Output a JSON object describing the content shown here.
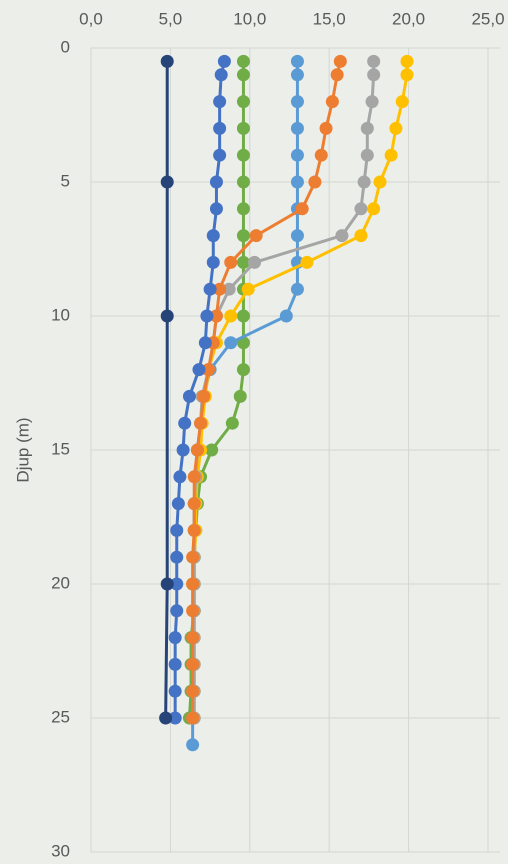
{
  "chart_data": {
    "type": "line",
    "y_label": "Djup (m)",
    "xlim": [
      0,
      25
    ],
    "ylim": [
      0,
      30
    ],
    "y_inverted": true,
    "x_axis_position": "top",
    "grid": true,
    "xticks": [
      {
        "value": 0,
        "label": "0,0"
      },
      {
        "value": 5,
        "label": "5,0"
      },
      {
        "value": 10,
        "label": "10,0"
      },
      {
        "value": 15,
        "label": "15,0"
      },
      {
        "value": 20,
        "label": "20,0"
      },
      {
        "value": 25,
        "label": "25,0"
      }
    ],
    "yticks": [
      0,
      5,
      10,
      15,
      20,
      25,
      30
    ],
    "series": [
      {
        "color": "#70ad47",
        "x": [
          9.6,
          9.6,
          9.6,
          9.6,
          9.6,
          9.6,
          9.6,
          9.6,
          9.6,
          9.6,
          9.6,
          9.6,
          9.6,
          9.4,
          8.9,
          7.6,
          6.9,
          6.7,
          6.6,
          6.5,
          6.4,
          6.5,
          6.3,
          6.3,
          6.3,
          6.2
        ],
        "values": [
          0.5,
          1,
          2,
          3,
          4,
          5,
          6,
          7,
          8,
          9,
          10,
          11,
          12,
          13,
          14,
          15,
          16,
          17,
          18,
          19,
          20,
          21,
          22,
          23,
          24,
          25
        ]
      },
      {
        "color": "#5b9bd5",
        "x": [
          13.0,
          13.0,
          13.0,
          13.0,
          13.0,
          13.0,
          13.0,
          13.0,
          13.0,
          13.0,
          12.3,
          8.8,
          7.5,
          7.1,
          6.9,
          6.7,
          6.6,
          6.5,
          6.5,
          6.5,
          6.5,
          6.5,
          6.4,
          6.4,
          6.4,
          6.4,
          6.4
        ],
        "values": [
          0.5,
          1,
          2,
          3,
          4,
          5,
          6,
          7,
          8,
          9,
          10,
          11,
          12,
          13,
          14,
          15,
          16,
          17,
          18,
          19,
          20,
          21,
          22,
          23,
          24,
          25,
          26
        ]
      },
      {
        "color": "#ffc000",
        "x": [
          19.9,
          19.9,
          19.6,
          19.2,
          18.9,
          18.2,
          17.8,
          17.0,
          13.6,
          9.9,
          8.8,
          7.9,
          7.4,
          7.2,
          7.0,
          6.9,
          6.7,
          6.6,
          6.6,
          6.5,
          6.5,
          6.5,
          6.5,
          6.5,
          6.5,
          6.5
        ],
        "values": [
          0.5,
          1,
          2,
          3,
          4,
          5,
          6,
          7,
          8,
          9,
          10,
          11,
          12,
          13,
          14,
          15,
          16,
          17,
          18,
          19,
          20,
          21,
          22,
          23,
          24,
          25
        ]
      },
      {
        "color": "#a5a5a5",
        "x": [
          17.8,
          17.8,
          17.7,
          17.4,
          17.4,
          17.2,
          17.0,
          15.8,
          10.3,
          8.7,
          7.9,
          7.7,
          7.4,
          7.0,
          6.9,
          6.7,
          6.6,
          6.5,
          6.5,
          6.5,
          6.5,
          6.5,
          6.5,
          6.5,
          6.5,
          6.5
        ],
        "values": [
          0.5,
          1,
          2,
          3,
          4,
          5,
          6,
          7,
          8,
          9,
          10,
          11,
          12,
          13,
          14,
          15,
          16,
          17,
          18,
          19,
          20,
          21,
          22,
          23,
          24,
          25
        ]
      },
      {
        "color": "#ed7d31",
        "x": [
          15.7,
          15.5,
          15.2,
          14.8,
          14.5,
          14.1,
          13.3,
          10.4,
          8.8,
          8.1,
          7.9,
          7.7,
          7.4,
          7.1,
          6.9,
          6.7,
          6.5,
          6.5,
          6.5,
          6.4,
          6.4,
          6.4,
          6.4,
          6.4,
          6.4,
          6.4
        ],
        "values": [
          0.5,
          1,
          2,
          3,
          4,
          5,
          6,
          7,
          8,
          9,
          10,
          11,
          12,
          13,
          14,
          15,
          16,
          17,
          18,
          19,
          20,
          21,
          22,
          23,
          24,
          25
        ]
      },
      {
        "color": "#4472c4",
        "x": [
          8.4,
          8.2,
          8.1,
          8.1,
          8.1,
          7.9,
          7.9,
          7.7,
          7.7,
          7.5,
          7.3,
          7.2,
          6.8,
          6.2,
          5.9,
          5.8,
          5.6,
          5.5,
          5.4,
          5.4,
          5.4,
          5.4,
          5.3,
          5.3,
          5.3,
          5.3
        ],
        "values": [
          0.5,
          1,
          2,
          3,
          4,
          5,
          6,
          7,
          8,
          9,
          10,
          11,
          12,
          13,
          14,
          15,
          16,
          17,
          18,
          19,
          20,
          21,
          22,
          23,
          24,
          25
        ]
      },
      {
        "color": "#264478",
        "x": [
          4.8,
          4.8,
          4.8,
          4.8,
          4.7
        ],
        "values": [
          0.5,
          5,
          10,
          20,
          25
        ]
      }
    ]
  }
}
